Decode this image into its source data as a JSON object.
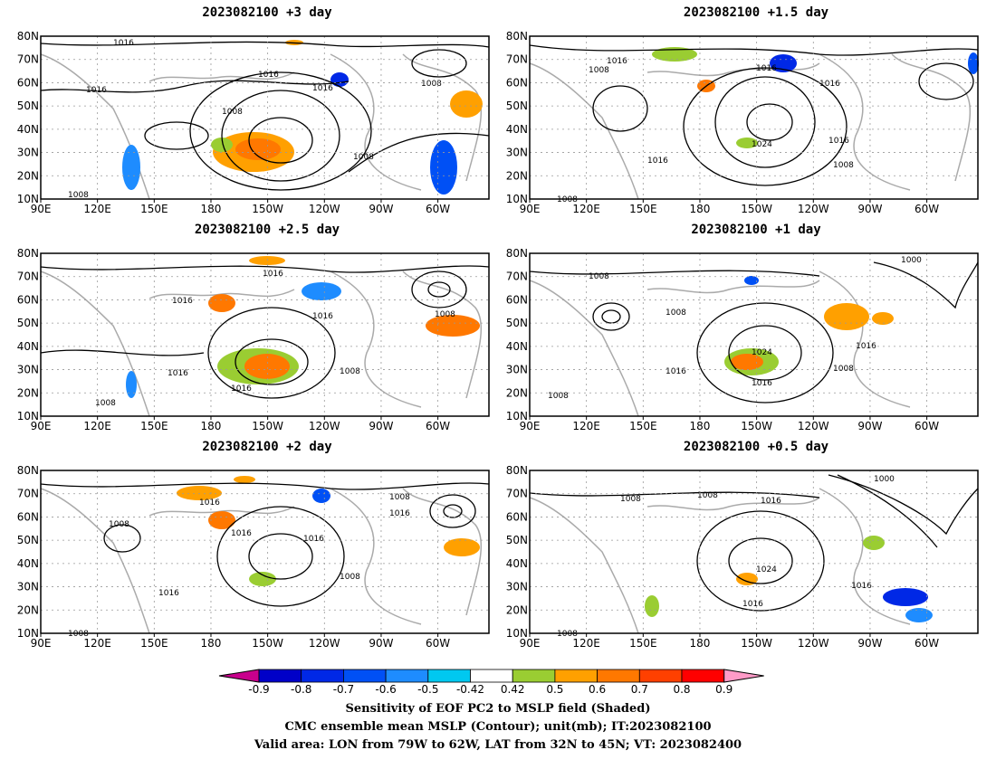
{
  "panels": [
    {
      "title": "2023082100  +3 day",
      "isobar_labels": [
        "1016",
        "1016",
        "1016",
        "1016",
        "1008",
        "1008",
        "1008",
        "1008"
      ]
    },
    {
      "title": "2023082100  +1.5 day",
      "isobar_labels": [
        "1016",
        "1008",
        "1016",
        "1016",
        "1024",
        "1016",
        "1016",
        "1008",
        "1008"
      ]
    },
    {
      "title": "2023082100  +2.5 day",
      "isobar_labels": [
        "1016",
        "1016",
        "1016",
        "1008",
        "1016",
        "1016",
        "1008",
        "1008"
      ]
    },
    {
      "title": "2023082100  +1 day",
      "isobar_labels": [
        "1008",
        "1008",
        "1000",
        "1024",
        "1016",
        "1016",
        "1016",
        "1008",
        "1008"
      ]
    },
    {
      "title": "2023082100  +2 day",
      "isobar_labels": [
        "1016",
        "1008",
        "1016",
        "1008",
        "1016",
        "1016",
        "1008",
        "1016",
        "1008"
      ]
    },
    {
      "title": "2023082100  +0.5 day",
      "isobar_labels": [
        "1008",
        "1008",
        "1016",
        "1000",
        "1024",
        "1016",
        "1016",
        "1008"
      ]
    }
  ],
  "lat_ticks": [
    "80N",
    "70N",
    "60N",
    "50N",
    "40N",
    "30N",
    "20N",
    "10N"
  ],
  "lon_ticks": [
    "90E",
    "120E",
    "150E",
    "180",
    "150W",
    "120W",
    "90W",
    "60W"
  ],
  "colorbar": {
    "labels": [
      "-0.9",
      "-0.8",
      "-0.7",
      "-0.6",
      "-0.5",
      "-0.42",
      "0.42",
      "0.5",
      "0.6",
      "0.7",
      "0.8",
      "0.9"
    ],
    "colors": [
      "#c8008c",
      "#0000c8",
      "#0028e6",
      "#0050f5",
      "#1e8cff",
      "#00c8f0",
      "#ffffff",
      "#9acd32",
      "#ffa000",
      "#ff7800",
      "#ff4000",
      "#ff0000",
      "#ff9bc8"
    ]
  },
  "caption": {
    "line1": "Sensitivity of EOF PC2 to MSLP field (Shaded)",
    "line2": "CMC ensemble mean MSLP (Contour); unit(mb); IT:2023082100",
    "line3": "Valid area: LON from 79W to 62W, LAT from 32N to 45N; VT: 2023082400"
  }
}
